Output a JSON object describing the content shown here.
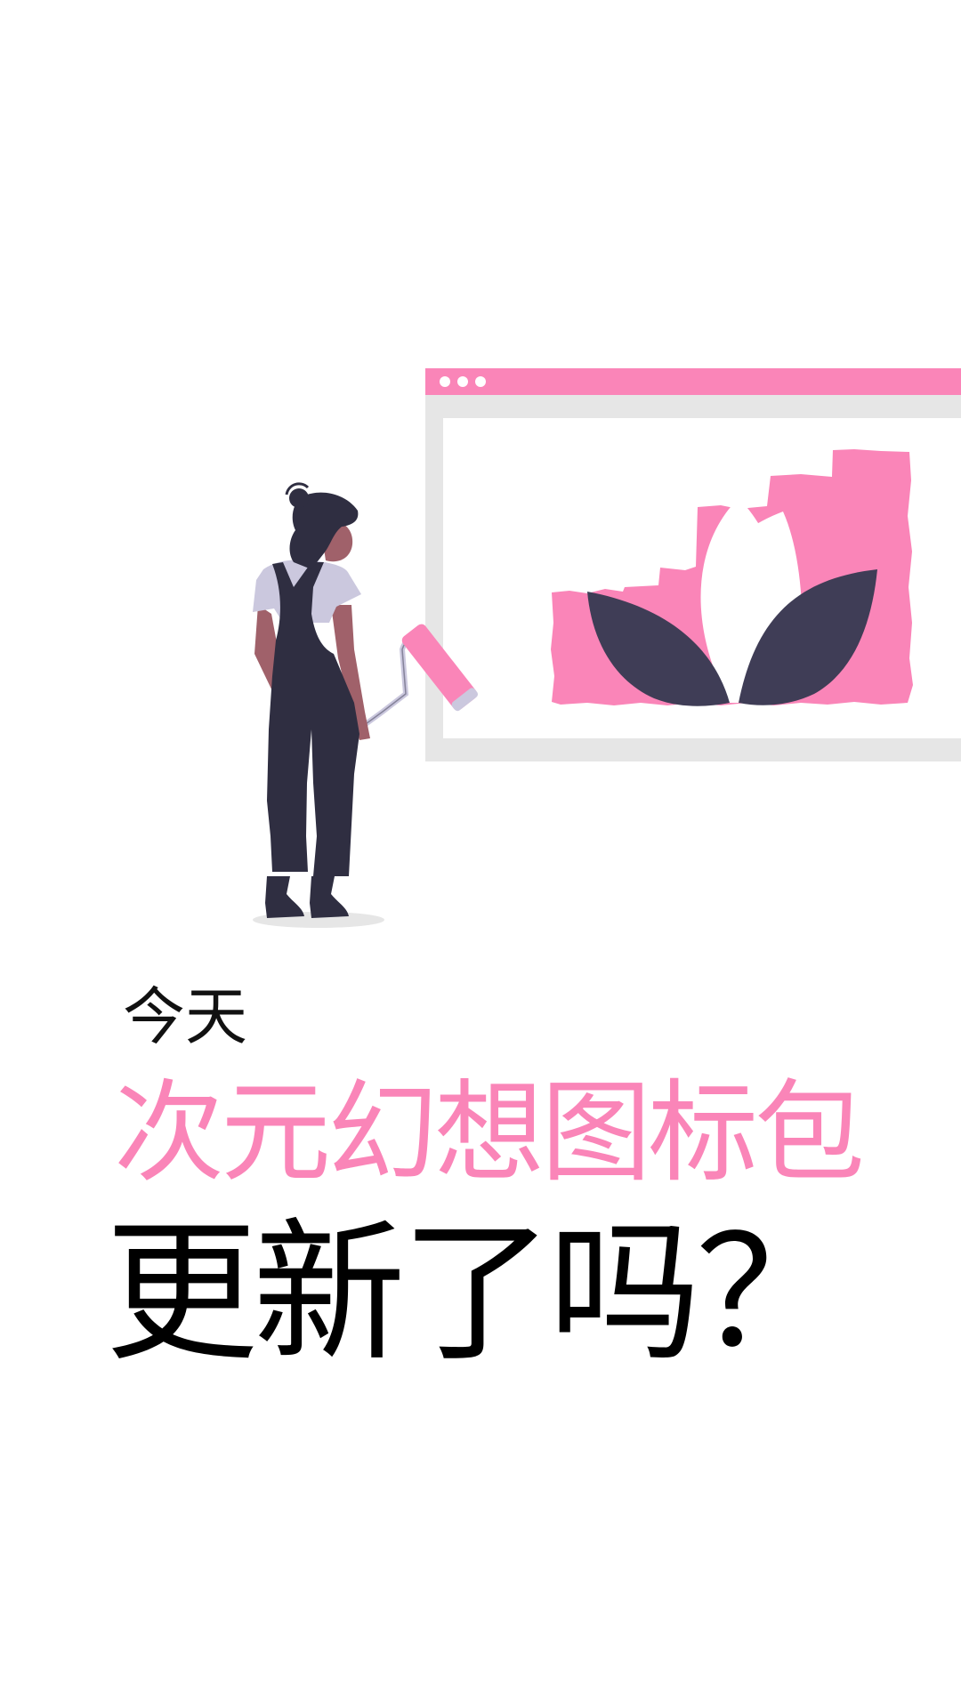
{
  "headline": {
    "small_text": "今天",
    "pink_text": "次元幻想图标包",
    "big_text": "更新了吗？"
  },
  "colors": {
    "accent_pink": "#fa85b8",
    "dark_navy": "#2f2e41",
    "leaf_dark": "#3f3d56",
    "frame_gray": "#e6e6e6",
    "shirt_lavender": "#cbc8de",
    "skin_brown": "#a0616a",
    "text_dark": "#000000"
  },
  "illustration": {
    "subject": "woman-painting-wall",
    "window_dots": 3
  }
}
